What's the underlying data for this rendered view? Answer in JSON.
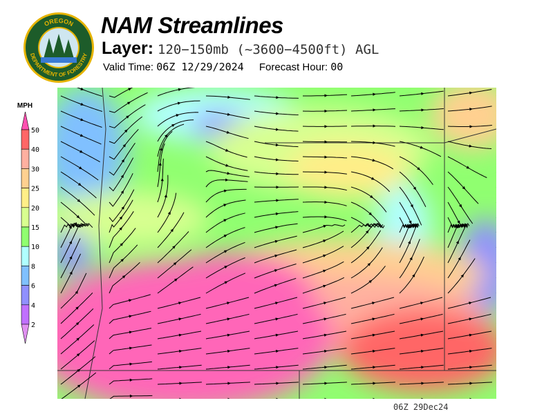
{
  "logo": {
    "text_top": "OREGON",
    "text_bottom": "DEPARTMENT OF FORESTRY"
  },
  "header": {
    "title": "NAM Streamlines",
    "layer_label": "Layer:",
    "layer_value": "120−150mb (~3600−4500ft) AGL",
    "valid_time_label": "Valid Time:",
    "valid_time_value": "06Z 12/29/2024",
    "forecast_hour_label": "Forecast Hour:",
    "forecast_hour_value": "00"
  },
  "legend": {
    "units": "MPH",
    "bins": [
      {
        "label": "50",
        "color": "#ff66b8"
      },
      {
        "label": "40",
        "color": "#ff6666"
      },
      {
        "label": "30",
        "color": "#ffb0a0"
      },
      {
        "label": "25",
        "color": "#ffd090"
      },
      {
        "label": "20",
        "color": "#ffee88"
      },
      {
        "label": "15",
        "color": "#d8ff90"
      },
      {
        "label": "10",
        "color": "#90ff70"
      },
      {
        "label": "8",
        "color": "#b0ffff"
      },
      {
        "label": "6",
        "color": "#80c0ff"
      },
      {
        "label": "4",
        "color": "#9090ff"
      },
      {
        "label": "2",
        "color": "#c070ff"
      }
    ],
    "under_color": "#e090f0",
    "over_color": "#ff50b0"
  },
  "map": {
    "timestamp": "06Z 29Dec24"
  }
}
